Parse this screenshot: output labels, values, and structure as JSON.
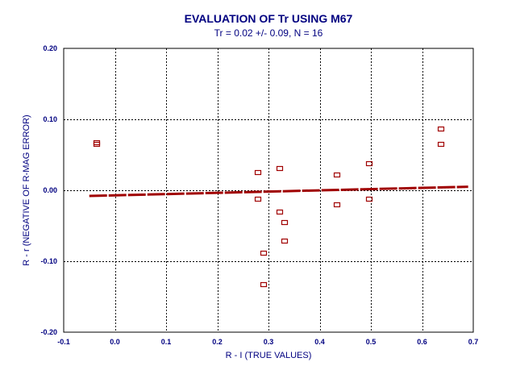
{
  "colors": {
    "text": "#000080",
    "marker": "#A00000",
    "fit_line": "#A00000",
    "frame": "#000000",
    "background": "#ffffff"
  },
  "chart_data": {
    "type": "scatter",
    "title": "EVALUATION OF Tr USING M67",
    "subtitle": "Tr = 0.02 +/- 0.09, N = 16",
    "xlabel": "R - I  (TRUE VALUES)",
    "ylabel": "R - r  (NEGATIVE OF R-MAG ERROR)",
    "xlim": [
      -0.1,
      0.7
    ],
    "ylim": [
      -0.2,
      0.2
    ],
    "x_ticks": [
      -0.1,
      0.0,
      0.1,
      0.2,
      0.3,
      0.4,
      0.5,
      0.6,
      0.7
    ],
    "x_tick_labels": [
      "-0.1",
      "0.0",
      "0.1",
      "0.2",
      "0.3",
      "0.4",
      "0.5",
      "0.6",
      "0.7"
    ],
    "y_ticks": [
      0.2,
      0.1,
      0.0,
      -0.1,
      -0.2
    ],
    "y_tick_labels": [
      "0.20",
      "0.10",
      "0.00",
      "-0.10",
      "-0.20"
    ],
    "grid": true,
    "series": [
      {
        "type": "scatter",
        "marker": "square",
        "points": [
          {
            "x": -0.035,
            "y": 0.067
          },
          {
            "x": -0.035,
            "y": 0.065
          },
          {
            "x": 0.279,
            "y": 0.025
          },
          {
            "x": 0.279,
            "y": -0.012
          },
          {
            "x": 0.29,
            "y": -0.089
          },
          {
            "x": 0.29,
            "y": -0.133
          },
          {
            "x": 0.322,
            "y": 0.031
          },
          {
            "x": 0.322,
            "y": -0.031
          },
          {
            "x": 0.332,
            "y": -0.046
          },
          {
            "x": 0.332,
            "y": -0.072
          },
          {
            "x": 0.434,
            "y": 0.022
          },
          {
            "x": 0.434,
            "y": -0.021
          },
          {
            "x": 0.497,
            "y": 0.038
          },
          {
            "x": 0.497,
            "y": -0.012
          },
          {
            "x": 0.637,
            "y": 0.086
          },
          {
            "x": 0.637,
            "y": 0.065
          }
        ]
      },
      {
        "type": "line",
        "style": "fit",
        "x": [
          -0.05,
          0.69
        ],
        "y": [
          -0.008,
          0.005
        ]
      }
    ]
  }
}
